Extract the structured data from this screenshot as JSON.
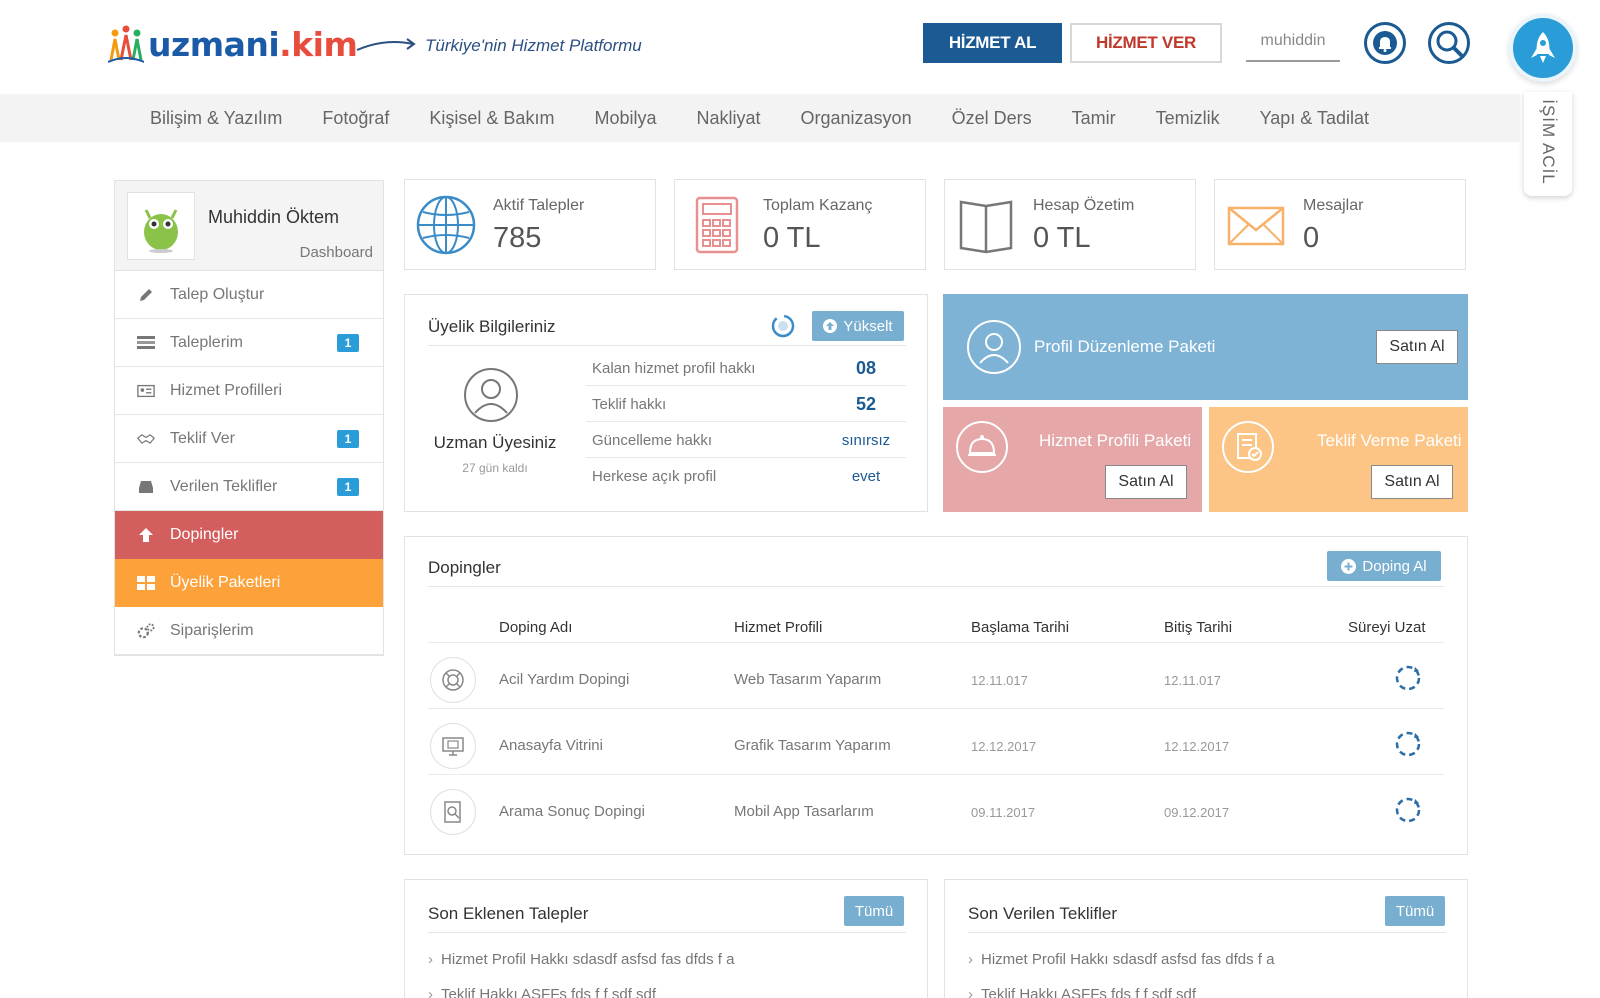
{
  "header": {
    "logo": {
      "part1": "uzmani",
      "part2": ".kim"
    },
    "tagline": "Türkiye'nin Hizmet Platformu",
    "hizmet_al": "HİZMET AL",
    "hizmet_ver": "HİZMET VER",
    "username": "muhiddin",
    "acil": "İŞİM ACİL"
  },
  "categories": [
    "Bilişim & Yazılım",
    "Fotoğraf",
    "Kişisel & Bakım",
    "Mobilya",
    "Nakliyat",
    "Organizasyon",
    "Özel Ders",
    "Tamir",
    "Temizlik",
    "Yapı & Tadilat"
  ],
  "sidebar": {
    "name": "Muhiddin Öktem",
    "subtitle": "Dashboard",
    "items": [
      {
        "label": "Talep Oluştur",
        "icon": "pencil-icon"
      },
      {
        "label": "Taleplerim",
        "badge": "1",
        "icon": "list-icon"
      },
      {
        "label": "Hizmet Profilleri",
        "icon": "id-card-icon"
      },
      {
        "label": "Teklif Ver",
        "badge": "1",
        "icon": "handshake-icon"
      },
      {
        "label": "Verilen Teklifler",
        "badge": "1",
        "icon": "inbox-icon"
      },
      {
        "label": "Dopingler",
        "icon": "arrow-up-icon"
      },
      {
        "label": "Üyelik Paketleri",
        "icon": "grid-icon"
      },
      {
        "label": "Siparişlerim",
        "icon": "gears-icon"
      }
    ]
  },
  "stats": [
    {
      "label": "Aktif Talepler",
      "value": "785",
      "icon": "globe-icon"
    },
    {
      "label": "Toplam Kazanç",
      "value": "0 TL",
      "icon": "calculator-icon"
    },
    {
      "label": "Hesap Özetim",
      "value": "0 TL",
      "icon": "book-icon"
    },
    {
      "label": "Mesajlar",
      "value": "0",
      "icon": "envelope-icon"
    }
  ],
  "membership": {
    "title": "Üyelik Bilgileriniz",
    "upgrade": "Yükselt",
    "type": "Uzman Üyesiniz",
    "days_left": "27 gün kaldı",
    "rows": [
      {
        "key": "Kalan hizmet profil hakkı",
        "value": "08"
      },
      {
        "key": "Teklif hakkı",
        "value": "52"
      },
      {
        "key": "Güncelleme hakkı",
        "value": "sınırsız"
      },
      {
        "key": "Herkese açık profil",
        "value": "evet"
      }
    ]
  },
  "packages": {
    "profile_edit": {
      "title": "Profil Düzenleme Paketi",
      "button": "Satın Al"
    },
    "service_profile": {
      "title": "Hizmet Profili Paketi",
      "button": "Satın Al"
    },
    "offer": {
      "title": "Teklif Verme Paketi",
      "button": "Satın Al"
    }
  },
  "dopings": {
    "title": "Dopingler",
    "buy": "Doping Al",
    "columns": [
      "Doping Adı",
      "Hizmet Profili",
      "Başlama Tarihi",
      "Bitiş Tarihi",
      "Süreyi Uzat"
    ],
    "rows": [
      {
        "name": "Acil Yardım Dopingi",
        "profile": "Web Tasarım Yaparım",
        "start": "12.11.017",
        "end": "12.11.017",
        "icon": "lifebuoy-icon"
      },
      {
        "name": "Anasayfa Vitrini",
        "profile": "Grafik Tasarım Yaparım",
        "start": "12.12.2017",
        "end": "12.12.2017",
        "icon": "monitor-icon"
      },
      {
        "name": "Arama Sonuç Dopingi",
        "profile": "Mobil App Tasarlarım",
        "start": "09.11.2017",
        "end": "09.12.2017",
        "icon": "search-doc-icon"
      }
    ]
  },
  "recent_requests": {
    "title": "Son Eklenen Talepler",
    "all": "Tümü",
    "items": [
      "Hizmet Profil Hakkı sdasdf asfsd fas dfds f a",
      "Teklif Hakkı  ASFFs fds f f sdf sdf"
    ]
  },
  "recent_offers": {
    "title": "Son Verilen Teklifler",
    "all": "Tümü",
    "items": [
      "Hizmet Profil Hakkı sdasdf asfsd fas dfds f a",
      "Teklif Hakkı  ASFFs fds f f sdf sdf"
    ]
  },
  "colors": {
    "primary": "#1b5a92",
    "accent_red": "#c0392b",
    "sidebar_red": "#d35e5e",
    "sidebar_orange": "#fda13a",
    "pkg_blue": "#7fb3d6",
    "pkg_pink": "#e5a7a8",
    "pkg_orange": "#fcc585",
    "badge_blue": "#2a9cd8"
  }
}
